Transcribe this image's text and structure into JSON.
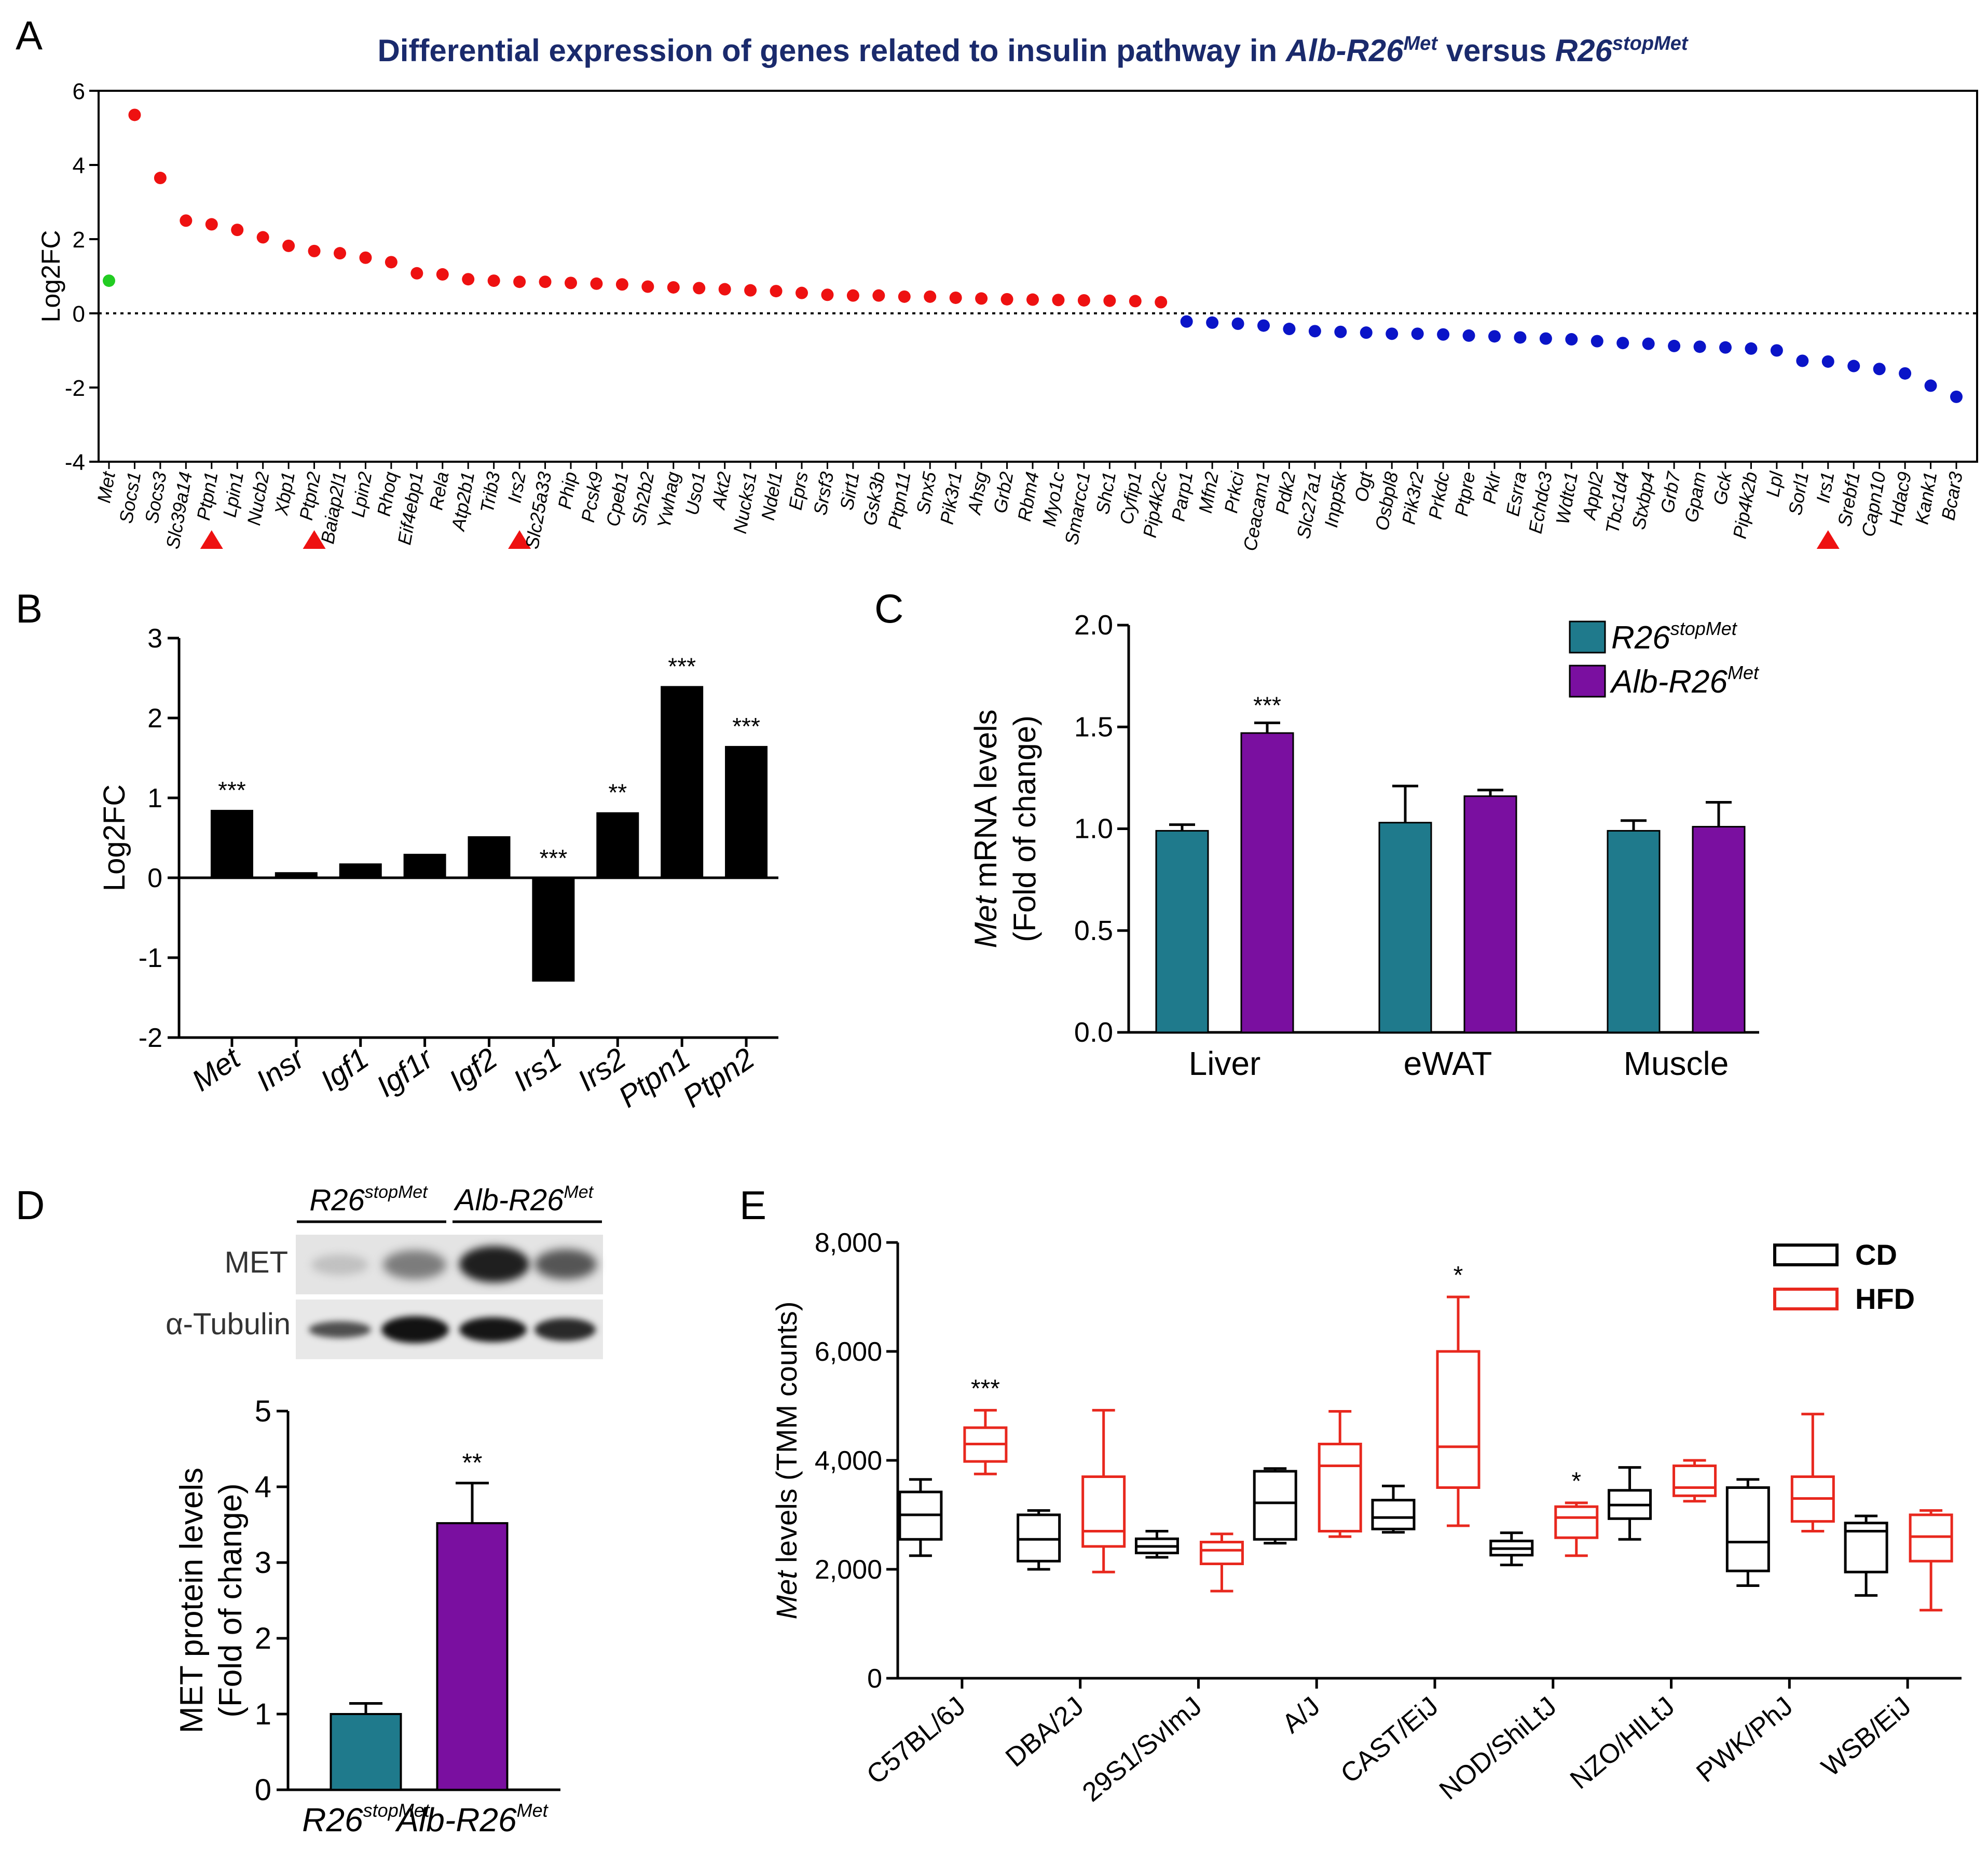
{
  "panels": {
    "A": {
      "letter": "A",
      "title_prefix": "Differential expression of genes related to insulin pathway in ",
      "title_g1_base": "Alb-R26",
      "title_g1_sup": "Met",
      "title_mid": " versus ",
      "title_g2_base": "R26",
      "title_g2_sup": "stopMet",
      "title_color": "#1a2a6c"
    },
    "B": {
      "letter": "B"
    },
    "C": {
      "letter": "C"
    },
    "D": {
      "letter": "D",
      "blot_header_1_base": "R26",
      "blot_header_1_sup": "stopMet",
      "blot_header_2_base": "Alb-R26",
      "blot_header_2_sup": "Met",
      "blot_row_1": "MET",
      "blot_row_2": "α-Tubulin"
    },
    "E": {
      "letter": "E"
    }
  },
  "colors": {
    "up": "#ee1111",
    "down": "#0a14c8",
    "met_dot": "#22cc22",
    "marker": "#ee1111",
    "teal": "#1f7a8c",
    "purple": "#7a0fa0",
    "black": "#000000",
    "hfd": "#e8281e"
  },
  "chart_data": [
    {
      "id": "A",
      "type": "scatter",
      "title": "Differential expression of genes related to insulin pathway in Alb-R26Met versus R26stopMet",
      "xlabel": "",
      "ylabel": "Log2FC",
      "ylim": [
        -4,
        6
      ],
      "yticks": [
        6,
        4,
        2,
        0,
        -2,
        -4
      ],
      "reference_line": 0,
      "genes": [
        "Met",
        "Socs1",
        "Socs3",
        "Slc39a14",
        "Ptpn1",
        "Lpin1",
        "Nucb2",
        "Xbp1",
        "Ptpn2",
        "Baiap2l1",
        "Lpin2",
        "Rhoq",
        "Eif4ebp1",
        "Rela",
        "Atp2b1",
        "Trib3",
        "Irs2",
        "Slc25a33",
        "Phip",
        "Pcsk9",
        "Cpeb1",
        "Sh2b2",
        "Ywhag",
        "Uso1",
        "Akt2",
        "Nucks1",
        "Ndel1",
        "Eprs",
        "Srsf3",
        "Sirt1",
        "Gsk3b",
        "Ptpn11",
        "Snx5",
        "Pik3r1",
        "Ahsg",
        "Grb2",
        "Rbm4",
        "Myo1c",
        "Smarcc1",
        "Shc1",
        "Cyfip1",
        "Pip4k2c",
        "Parp1",
        "Mfn2",
        "Prkci",
        "Ceacam1",
        "Pdk2",
        "Slc27a1",
        "Inpp5k",
        "Ogt",
        "Osbpl8",
        "Pik3r2",
        "Prkdc",
        "Ptpre",
        "Pklr",
        "Esrra",
        "Echdc3",
        "Wdtc1",
        "Appl2",
        "Tbc1d4",
        "Stxbp4",
        "Grb7",
        "Gpam",
        "Gck",
        "Pip4k2b",
        "Lpl",
        "Sorl1",
        "Irs1",
        "Srebf1",
        "Capn10",
        "Hdac9",
        "Kank1",
        "Bcar3"
      ],
      "values": [
        0.88,
        5.35,
        3.65,
        2.5,
        2.4,
        2.25,
        2.05,
        1.82,
        1.68,
        1.62,
        1.5,
        1.38,
        1.08,
        1.05,
        0.92,
        0.88,
        0.85,
        0.85,
        0.82,
        0.8,
        0.78,
        0.72,
        0.7,
        0.68,
        0.65,
        0.62,
        0.6,
        0.55,
        0.5,
        0.48,
        0.48,
        0.45,
        0.45,
        0.42,
        0.4,
        0.38,
        0.37,
        0.36,
        0.35,
        0.34,
        0.33,
        0.3,
        -0.22,
        -0.25,
        -0.28,
        -0.33,
        -0.42,
        -0.48,
        -0.5,
        -0.52,
        -0.55,
        -0.55,
        -0.57,
        -0.6,
        -0.62,
        -0.65,
        -0.68,
        -0.7,
        -0.75,
        -0.8,
        -0.82,
        -0.88,
        -0.9,
        -0.92,
        -0.95,
        -1.0,
        -1.28,
        -1.3,
        -1.42,
        -1.5,
        -1.62,
        -1.95,
        -2.25
      ],
      "marked_genes": [
        "Ptpn1",
        "Ptpn2",
        "Irs2",
        "Irs1"
      ]
    },
    {
      "id": "B",
      "type": "bar",
      "ylabel": "Log2FC",
      "ylim": [
        -2,
        3
      ],
      "yticks": [
        3,
        2,
        1,
        0,
        -1,
        -2
      ],
      "categories": [
        "Met",
        "Insr",
        "Igf1",
        "Igf1r",
        "Igf2",
        "Irs1",
        "Irs2",
        "Ptpn1",
        "Ptpn2"
      ],
      "values": [
        0.85,
        0.07,
        0.18,
        0.3,
        0.52,
        -1.3,
        0.82,
        2.4,
        1.65
      ],
      "significance": [
        "***",
        "",
        "",
        "",
        "",
        "***",
        "**",
        "***",
        "***"
      ]
    },
    {
      "id": "C",
      "type": "bar",
      "ylabel_italic": "Met",
      "ylabel_rest": " mRNA levels",
      "ylabel_line2": "(Fold of change)",
      "ylim": [
        0,
        2
      ],
      "yticks": [
        "0.0",
        "0.5",
        "1.0",
        "1.5",
        "2.0"
      ],
      "categories": [
        "Liver",
        "eWAT",
        "Muscle"
      ],
      "series": [
        {
          "name": "R26stopMet",
          "name_base": "R26",
          "name_sup": "stopMet",
          "values": [
            0.99,
            1.03,
            0.99
          ],
          "errors": [
            0.03,
            0.18,
            0.05
          ]
        },
        {
          "name": "Alb-R26Met",
          "name_base": "Alb-R26",
          "name_sup": "Met",
          "values": [
            1.47,
            1.16,
            1.01
          ],
          "errors": [
            0.05,
            0.03,
            0.12
          ]
        }
      ],
      "significance": [
        "***",
        "",
        ""
      ]
    },
    {
      "id": "D",
      "type": "bar",
      "ylabel_line1": "MET protein levels",
      "ylabel_line2": "(Fold of change)",
      "ylim": [
        0,
        5
      ],
      "yticks": [
        0,
        1,
        2,
        3,
        4,
        5
      ],
      "categories": [
        "R26stopMet",
        "Alb-R26Met"
      ],
      "category_base": [
        "R26",
        "Alb-R26"
      ],
      "category_sup": [
        "stopMet",
        "Met"
      ],
      "values": [
        1.0,
        3.52
      ],
      "errors": [
        0.14,
        0.53
      ],
      "significance": [
        "",
        "**"
      ]
    },
    {
      "id": "E",
      "type": "box",
      "ylabel_italic": "Met",
      "ylabel_rest": " levels (TMM counts)",
      "ylim": [
        0,
        8000
      ],
      "yticks": [
        "0",
        "2,000",
        "4,000",
        "6,000",
        "8,000"
      ],
      "categories": [
        "C57BL/6J",
        "DBA/2J",
        "29S1/SvImJ",
        "A/J",
        "CAST/EiJ",
        "NOD/ShiLtJ",
        "NZO/HlLtJ",
        "PWK/PhJ",
        "WSB/EiJ"
      ],
      "legend": [
        "CD",
        "HFD"
      ],
      "series": [
        {
          "name": "CD",
          "boxes": [
            [
              2250,
              2550,
              3000,
              3420,
              3650
            ],
            [
              2000,
              2150,
              2550,
              3000,
              3080
            ],
            [
              2220,
              2300,
              2420,
              2560,
              2700
            ],
            [
              2480,
              2550,
              3220,
              3800,
              3850
            ],
            [
              2680,
              2740,
              2950,
              3270,
              3530
            ],
            [
              2080,
              2260,
              2380,
              2520,
              2670
            ],
            [
              2550,
              2930,
              3180,
              3450,
              3870
            ],
            [
              1700,
              1970,
              2500,
              3500,
              3650
            ],
            [
              1520,
              1950,
              2700,
              2850,
              2980
            ]
          ]
        },
        {
          "name": "HFD",
          "boxes": [
            [
              3750,
              3980,
              4300,
              4600,
              4920
            ],
            [
              1950,
              2420,
              2700,
              3700,
              4920
            ],
            [
              1600,
              2100,
              2350,
              2500,
              2650
            ],
            [
              2600,
              2700,
              3900,
              4300,
              4900
            ],
            [
              2800,
              3500,
              4250,
              6000,
              7000
            ],
            [
              2250,
              2580,
              2950,
              3150,
              3220
            ],
            [
              3250,
              3350,
              3500,
              3900,
              4000
            ],
            [
              2700,
              2880,
              3300,
              3700,
              4850
            ],
            [
              1250,
              2150,
              2600,
              3000,
              3080
            ]
          ]
        }
      ],
      "significance": [
        "***",
        "",
        "",
        "",
        "*",
        "*",
        "",
        "",
        ""
      ]
    }
  ]
}
